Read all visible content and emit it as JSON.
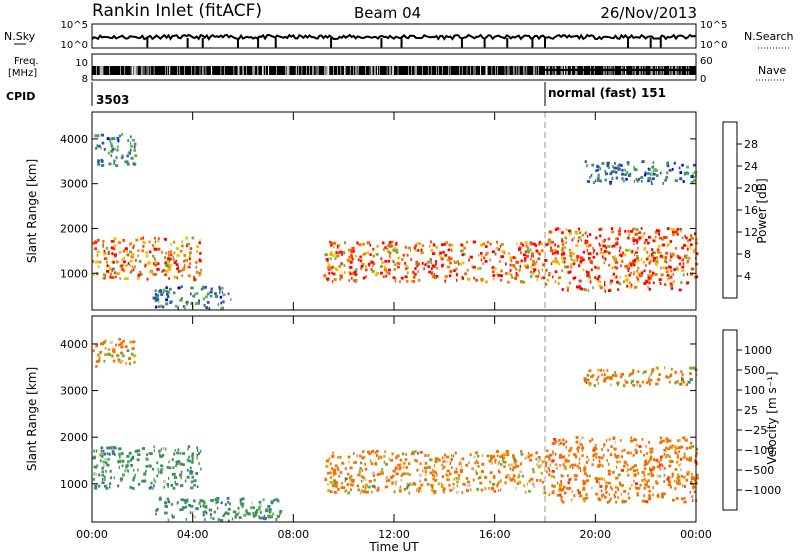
{
  "header": {
    "station": "Rankin Inlet (fitACF)",
    "beam": "Beam 04",
    "date": "26/Nov/2013"
  },
  "panels": {
    "nsky_label": "N.Sky",
    "nsearch_label": "N.Search",
    "nsky_top": "10^5",
    "nsky_bottom": "10^0",
    "nsearch_top": "10^5",
    "nsearch_bottom": "10^0",
    "freq_label_1": "Freq.",
    "freq_label_2": "[MHz]",
    "freq_top": "10",
    "freq_bottom": "8",
    "nave_label": "Nave",
    "nave_top": "60",
    "nave_bottom": "0",
    "cpid_label": "CPID",
    "cpid_left": "3503",
    "cpid_right": "normal (fast) 151"
  },
  "axes": {
    "slant_label": "Slant Range [km]",
    "x_label": "Time UT",
    "x_ticks": [
      "00:00",
      "04:00",
      "08:00",
      "12:00",
      "16:00",
      "20:00",
      "00:00"
    ],
    "y_ticks": [
      "1000",
      "2000",
      "3000",
      "4000"
    ]
  },
  "power_scale": {
    "label": "Power [dB]",
    "ticks": [
      "4",
      "8",
      "12",
      "16",
      "20",
      "24",
      "28"
    ],
    "colors": [
      "#0000ff",
      "#2a50b4",
      "#3f8f6a",
      "#67b83a",
      "#f0c000",
      "#f08000",
      "#ff4000",
      "#ff0000"
    ]
  },
  "velocity_scale": {
    "label": "Velocity [m s⁻¹]",
    "ticks": [
      "1000",
      "500",
      "100",
      "25",
      "−25",
      "−100",
      "−500",
      "−1000"
    ],
    "colors": [
      "#1a3aa8",
      "#2b6fb0",
      "#3c8f5c",
      "#56b83a",
      "#c8c8b4",
      "#f0a000",
      "#f07000",
      "#ff3000",
      "#ff0000"
    ]
  },
  "chart_data": [
    {
      "type": "heatmap",
      "ylabel": "Slant Range [km]",
      "xlabel": "Time UT",
      "x": [
        "00:00",
        "04:00",
        "08:00",
        "12:00",
        "16:00",
        "20:00",
        "00:00"
      ],
      "ylim": [
        180,
        4600
      ],
      "colorbar": "Power [dB]",
      "bands": [
        {
          "t0": 0,
          "t1": 4.3,
          "r0": 850,
          "r1": 1800,
          "value": 26
        },
        {
          "t0": 0,
          "t1": 1.7,
          "r0": 3400,
          "r1": 4100,
          "value": 10
        },
        {
          "t0": 2.4,
          "t1": 5.5,
          "r0": 200,
          "r1": 700,
          "value": 10
        },
        {
          "t0": 9.2,
          "t1": 18.0,
          "r0": 800,
          "r1": 1700,
          "value": 27
        },
        {
          "t0": 18.0,
          "t1": 24.0,
          "r0": 600,
          "r1": 2000,
          "value": 28
        },
        {
          "t0": 19.5,
          "t1": 24.0,
          "r0": 3000,
          "r1": 3500,
          "value": 10
        }
      ]
    },
    {
      "type": "heatmap",
      "ylabel": "Slant Range [km]",
      "xlabel": "Time UT",
      "x": [
        "00:00",
        "04:00",
        "08:00",
        "12:00",
        "16:00",
        "20:00",
        "00:00"
      ],
      "ylim": [
        180,
        4600
      ],
      "colorbar": "Velocity [m s⁻¹]",
      "bands": [
        {
          "t0": 0,
          "t1": 4.3,
          "r0": 900,
          "r1": 1800,
          "value": 300
        },
        {
          "t0": 0,
          "t1": 1.7,
          "r0": 3500,
          "r1": 4100,
          "value": -150
        },
        {
          "t0": 2.5,
          "t1": 7.5,
          "r0": 200,
          "r1": 700,
          "value": 300
        },
        {
          "t0": 9.2,
          "t1": 18.0,
          "r0": 800,
          "r1": 1700,
          "value": -200
        },
        {
          "t0": 18.0,
          "t1": 24.0,
          "r0": 600,
          "r1": 2000,
          "value": -300
        },
        {
          "t0": 19.5,
          "t1": 24.0,
          "r0": 3100,
          "r1": 3500,
          "value": -150
        }
      ]
    }
  ]
}
